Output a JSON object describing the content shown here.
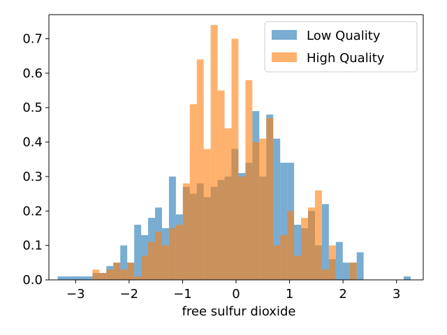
{
  "chart_data": {
    "type": "bar",
    "xlabel": "free sulfur dioxide",
    "ylabel": "",
    "xlim": [
      -3.5,
      3.5
    ],
    "ylim": [
      0,
      0.77
    ],
    "xticks": [
      -3,
      -2,
      -1,
      0,
      1,
      2,
      3
    ],
    "yticks": [
      0.0,
      0.1,
      0.2,
      0.3,
      0.4,
      0.5,
      0.6,
      0.7
    ],
    "grid": false,
    "legend_position": "top-right",
    "bin_width": 0.13,
    "series": [
      {
        "name": "Low Quality",
        "color": "#1f77b4",
        "opacity": 0.6,
        "bins": [
          {
            "x": -3.27,
            "y": 0.01
          },
          {
            "x": -3.14,
            "y": 0.01
          },
          {
            "x": -3.01,
            "y": 0.01
          },
          {
            "x": -2.88,
            "y": 0.01
          },
          {
            "x": -2.75,
            "y": 0.01
          },
          {
            "x": -2.62,
            "y": 0.02
          },
          {
            "x": -2.49,
            "y": 0.02
          },
          {
            "x": -2.36,
            "y": 0.04
          },
          {
            "x": -2.23,
            "y": 0.05
          },
          {
            "x": -2.1,
            "y": 0.1
          },
          {
            "x": -1.97,
            "y": 0.05
          },
          {
            "x": -1.84,
            "y": 0.16
          },
          {
            "x": -1.71,
            "y": 0.13
          },
          {
            "x": -1.58,
            "y": 0.18
          },
          {
            "x": -1.45,
            "y": 0.21
          },
          {
            "x": -1.32,
            "y": 0.15
          },
          {
            "x": -1.19,
            "y": 0.3
          },
          {
            "x": -1.06,
            "y": 0.19
          },
          {
            "x": -0.93,
            "y": 0.27
          },
          {
            "x": -0.8,
            "y": 0.25
          },
          {
            "x": -0.67,
            "y": 0.28
          },
          {
            "x": -0.54,
            "y": 0.24
          },
          {
            "x": -0.41,
            "y": 0.27
          },
          {
            "x": -0.28,
            "y": 0.29
          },
          {
            "x": -0.15,
            "y": 0.3
          },
          {
            "x": -0.02,
            "y": 0.38
          },
          {
            "x": 0.11,
            "y": 0.31
          },
          {
            "x": 0.24,
            "y": 0.34
          },
          {
            "x": 0.37,
            "y": 0.49
          },
          {
            "x": 0.5,
            "y": 0.3
          },
          {
            "x": 0.63,
            "y": 0.48
          },
          {
            "x": 0.76,
            "y": 0.41
          },
          {
            "x": 0.89,
            "y": 0.34
          },
          {
            "x": 1.02,
            "y": 0.34
          },
          {
            "x": 1.15,
            "y": 0.16
          },
          {
            "x": 1.28,
            "y": 0.15
          },
          {
            "x": 1.41,
            "y": 0.2
          },
          {
            "x": 1.54,
            "y": 0.1
          },
          {
            "x": 1.67,
            "y": 0.22
          },
          {
            "x": 1.8,
            "y": 0.06
          },
          {
            "x": 1.93,
            "y": 0.11
          },
          {
            "x": 2.06,
            "y": 0.05
          },
          {
            "x": 2.19,
            "y": 0.05
          },
          {
            "x": 2.32,
            "y": 0.08
          },
          {
            "x": 3.2,
            "y": 0.01
          }
        ]
      },
      {
        "name": "High Quality",
        "color": "#ff7f0e",
        "opacity": 0.6,
        "bins": [
          {
            "x": -2.62,
            "y": 0.03
          },
          {
            "x": -2.49,
            "y": 0.02
          },
          {
            "x": -2.36,
            "y": 0.03
          },
          {
            "x": -2.23,
            "y": 0.05
          },
          {
            "x": -2.1,
            "y": 0.03
          },
          {
            "x": -1.97,
            "y": 0.05
          },
          {
            "x": -1.84,
            "y": 0.01
          },
          {
            "x": -1.71,
            "y": 0.07
          },
          {
            "x": -1.58,
            "y": 0.11
          },
          {
            "x": -1.45,
            "y": 0.14
          },
          {
            "x": -1.32,
            "y": 0.1
          },
          {
            "x": -1.19,
            "y": 0.15
          },
          {
            "x": -1.06,
            "y": 0.16
          },
          {
            "x": -0.93,
            "y": 0.28
          },
          {
            "x": -0.8,
            "y": 0.51
          },
          {
            "x": -0.67,
            "y": 0.64
          },
          {
            "x": -0.54,
            "y": 0.38
          },
          {
            "x": -0.41,
            "y": 0.74
          },
          {
            "x": -0.28,
            "y": 0.55
          },
          {
            "x": -0.15,
            "y": 0.44
          },
          {
            "x": -0.02,
            "y": 0.7
          },
          {
            "x": 0.11,
            "y": 0.3
          },
          {
            "x": 0.24,
            "y": 0.58
          },
          {
            "x": 0.37,
            "y": 0.4
          },
          {
            "x": 0.5,
            "y": 0.41
          },
          {
            "x": 0.63,
            "y": 0.47
          },
          {
            "x": 0.76,
            "y": 0.1
          },
          {
            "x": 0.89,
            "y": 0.13
          },
          {
            "x": 1.02,
            "y": 0.2
          },
          {
            "x": 1.15,
            "y": 0.07
          },
          {
            "x": 1.28,
            "y": 0.18
          },
          {
            "x": 1.41,
            "y": 0.21
          },
          {
            "x": 1.54,
            "y": 0.26
          },
          {
            "x": 1.67,
            "y": 0.03
          },
          {
            "x": 1.8,
            "y": 0.1
          },
          {
            "x": 2.19,
            "y": 0.05
          }
        ]
      }
    ]
  }
}
